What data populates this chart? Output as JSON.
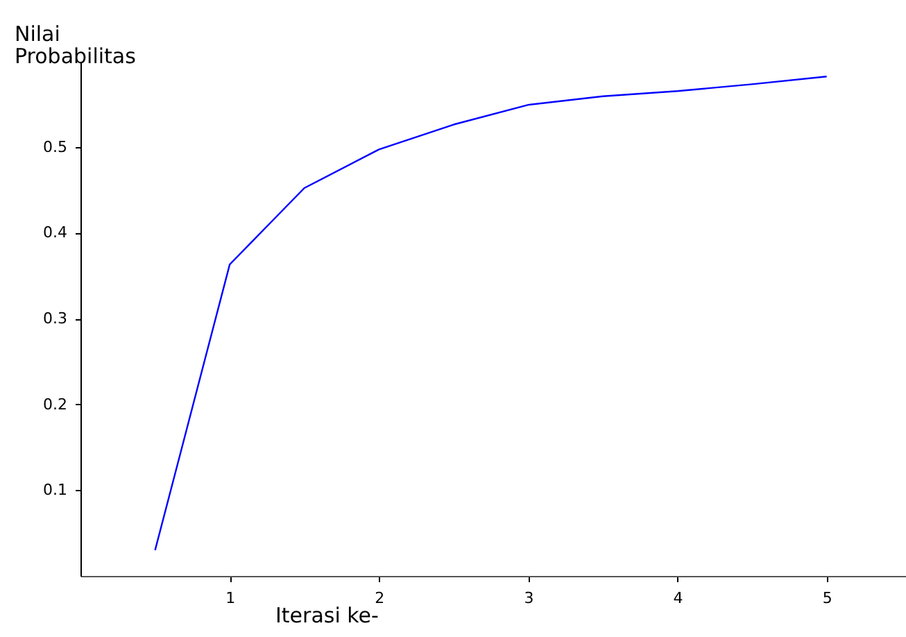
{
  "chart_data": {
    "type": "line",
    "xlabel": "Iterasi ke-",
    "ylabel": "Nilai Probabilitas",
    "x": [
      0.5,
      1,
      1.5,
      2,
      2.5,
      3,
      3.5,
      4,
      4.5,
      5
    ],
    "series": [
      {
        "color": "#0000ff",
        "values": [
          0.03,
          0.363,
          0.452,
          0.497,
          0.526,
          0.549,
          0.559,
          0.565,
          0.573,
          0.582
        ]
      }
    ],
    "xlim": [
      0,
      5.55
    ],
    "ylim": [
      0,
      0.6
    ],
    "xticks": [
      1,
      2,
      3,
      4,
      5
    ],
    "yticks": [
      0.1,
      0.2,
      0.3,
      0.4,
      0.5
    ],
    "grid": false,
    "marker": "none",
    "line_style": "solid"
  }
}
